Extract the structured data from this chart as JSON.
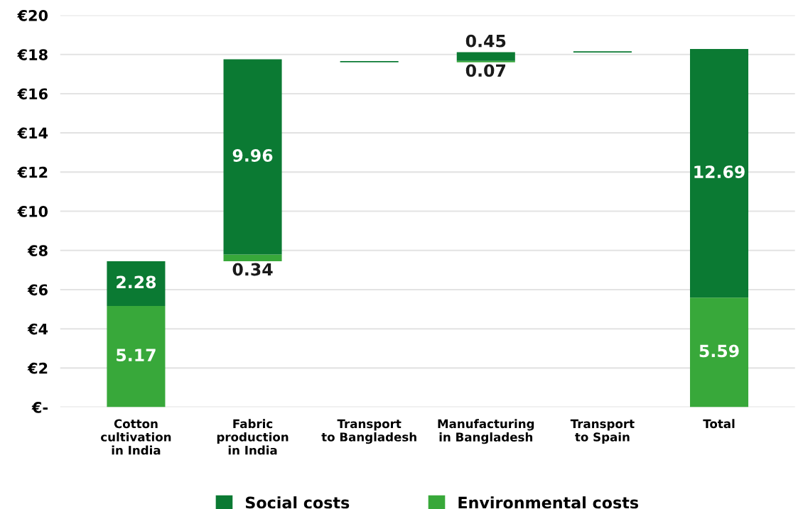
{
  "chart_data": {
    "type": "bar",
    "categories": [
      "Cotton\ncultivation\nin India",
      "Fabric\nproduction\nin India",
      "Transport\nto Bangladesh",
      "Manufacturing\nin Bangladesh",
      "Transport\nto Spain",
      "Total"
    ],
    "series": [
      {
        "name": "Environmental costs",
        "color": "#38a83a",
        "values": [
          5.17,
          0.34,
          null,
          0.07,
          null,
          5.59
        ],
        "base": [
          0,
          7.45,
          null,
          17.6,
          null,
          0
        ],
        "value_labels": [
          "5.17",
          "0.34",
          null,
          "0.07",
          null,
          "5.59"
        ]
      },
      {
        "name": "Social costs",
        "color": "#0b7a33",
        "values": [
          2.28,
          9.96,
          0.06,
          0.45,
          0.06,
          12.69
        ],
        "base": [
          5.17,
          7.79,
          17.6,
          17.67,
          18.1,
          5.59
        ],
        "value_labels": [
          "2.28",
          "9.96",
          null,
          "0.45",
          null,
          "12.69"
        ]
      }
    ],
    "ylim": [
      0,
      20
    ],
    "yticks": [
      {
        "value": 0,
        "label": "€-"
      },
      {
        "value": 2,
        "label": "€2"
      },
      {
        "value": 4,
        "label": "€4"
      },
      {
        "value": 6,
        "label": "€6"
      },
      {
        "value": 8,
        "label": "€8"
      },
      {
        "value": 10,
        "label": "€10"
      },
      {
        "value": 12,
        "label": "€12"
      },
      {
        "value": 14,
        "label": "€14"
      },
      {
        "value": 16,
        "label": "€16"
      },
      {
        "value": 18,
        "label": "€18"
      },
      {
        "value": 20,
        "label": "€20"
      }
    ],
    "grid": "y",
    "legend": "bottom"
  }
}
